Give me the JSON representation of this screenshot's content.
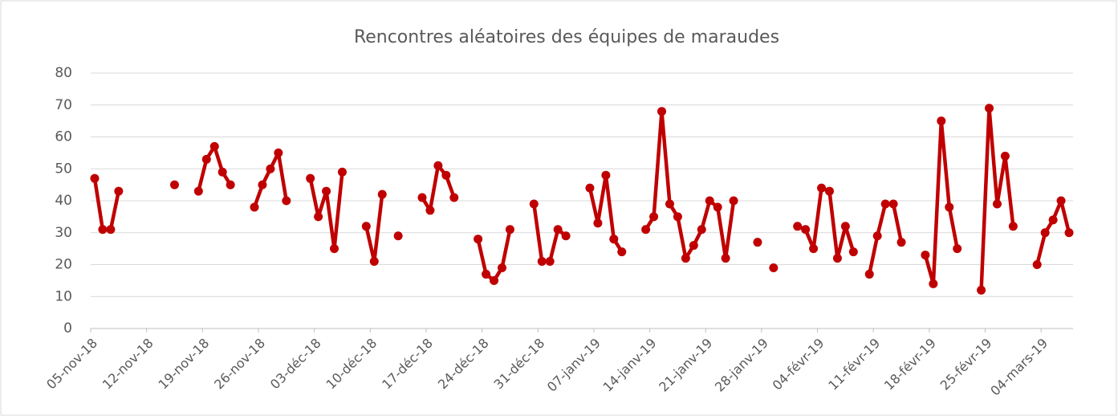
{
  "chart_data": {
    "type": "line",
    "title": "Rencontres aléatoires des équipes de maraudes",
    "categories": [
      "05-nov-18",
      null,
      null,
      null,
      null,
      null,
      null,
      "12-nov-18",
      null,
      null,
      null,
      null,
      null,
      null,
      "19-nov-18",
      null,
      null,
      null,
      null,
      null,
      null,
      "26-nov-18",
      null,
      null,
      null,
      null,
      null,
      null,
      "03-déc-18",
      null,
      null,
      null,
      null,
      null,
      null,
      "10-déc-18",
      null,
      null,
      null,
      null,
      null,
      null,
      "17-déc-18",
      null,
      null,
      null,
      null,
      null,
      null,
      "24-déc-18",
      null,
      null,
      null,
      null,
      null,
      null,
      "31-déc-18",
      null,
      null,
      null,
      null,
      null,
      null,
      "07-janv-19",
      null,
      null,
      null,
      null,
      null,
      null,
      "14-janv-19",
      null,
      null,
      null,
      null,
      null,
      null,
      "21-janv-19",
      null,
      null,
      null,
      null,
      null,
      null,
      "28-janv-19",
      null,
      null,
      null,
      null,
      null,
      null,
      "04-févr-19",
      null,
      null,
      null,
      null,
      null,
      null,
      "11-févr-19",
      null,
      null,
      null,
      null,
      null,
      null,
      "18-févr-19",
      null,
      null,
      null,
      null,
      null,
      null,
      "25-févr-19",
      null,
      null,
      null,
      null,
      null,
      null,
      "04-mars-19",
      null,
      null,
      null
    ],
    "series": [
      {
        "color": "#c00000",
        "values": [
          47,
          31,
          31,
          43,
          null,
          null,
          null,
          null,
          null,
          null,
          45,
          null,
          null,
          43,
          53,
          57,
          49,
          45,
          null,
          null,
          38,
          45,
          50,
          55,
          40,
          null,
          null,
          47,
          35,
          43,
          25,
          49,
          null,
          null,
          32,
          21,
          42,
          null,
          29,
          null,
          null,
          41,
          37,
          51,
          48,
          41,
          null,
          null,
          28,
          17,
          15,
          19,
          31,
          null,
          null,
          39,
          21,
          21,
          31,
          29,
          null,
          null,
          44,
          33,
          48,
          28,
          24,
          null,
          null,
          31,
          35,
          68,
          39,
          35,
          22,
          26,
          31,
          40,
          38,
          22,
          40,
          null,
          null,
          27,
          null,
          19,
          null,
          null,
          32,
          31,
          25,
          44,
          43,
          22,
          32,
          24,
          null,
          17,
          29,
          39,
          39,
          27,
          null,
          null,
          23,
          14,
          65,
          38,
          25,
          null,
          null,
          12,
          69,
          39,
          54,
          32,
          null,
          null,
          20,
          30,
          34,
          40,
          30
        ]
      }
    ],
    "ylim": [
      0,
      80
    ],
    "yticks": [
      0,
      10,
      20,
      30,
      40,
      50,
      60,
      70,
      80
    ],
    "grid": true
  }
}
